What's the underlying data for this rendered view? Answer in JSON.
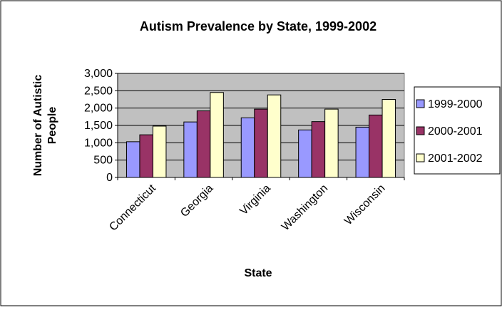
{
  "chart_data": {
    "type": "bar",
    "title": "Autism Prevalence by State, 1999-2002",
    "xlabel": "State",
    "ylabel": "Number of Autistic People",
    "categories": [
      "Connecticut",
      "Georgia",
      "Virginia",
      "Washington",
      "Wisconsin"
    ],
    "series": [
      {
        "name": "1999-2000",
        "color": "#9999FF",
        "values": [
          1030,
          1600,
          1720,
          1370,
          1450
        ]
      },
      {
        "name": "2000-2001",
        "color": "#993366",
        "values": [
          1230,
          1920,
          1970,
          1610,
          1800
        ]
      },
      {
        "name": "2001-2002",
        "color": "#FFFFCC",
        "values": [
          1480,
          2450,
          2380,
          1970,
          2250
        ]
      }
    ],
    "ylim": [
      0,
      3000
    ],
    "yticks": [
      0,
      500,
      1000,
      1500,
      2000,
      2500,
      3000
    ],
    "ytick_labels": [
      "0",
      "500",
      "1,000",
      "1,500",
      "2,000",
      "2,500",
      "3,000"
    ],
    "grid": true,
    "plot_background": "#C0C0C0",
    "legend_position": "right"
  }
}
